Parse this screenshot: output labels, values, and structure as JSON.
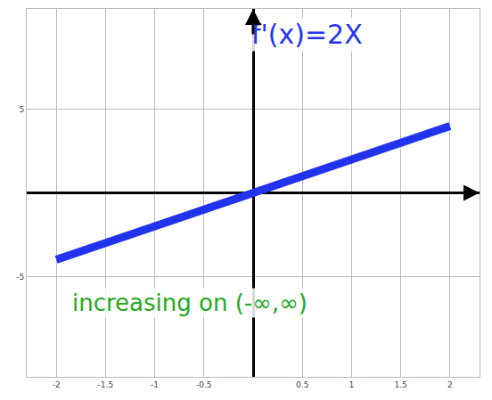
{
  "chart_data": {
    "type": "line",
    "x": [
      -2,
      2
    ],
    "series": [
      {
        "name": "f'(x)=2X",
        "color": "#2233ee",
        "values": [
          -4,
          4
        ]
      }
    ],
    "xlim": [
      -2.3,
      2.3
    ],
    "xticks": [
      -2,
      -1.5,
      -1,
      -0.5,
      0.5,
      1,
      1.5,
      2
    ],
    "ylim": [
      -11,
      11
    ],
    "yticks": [
      -5,
      5
    ],
    "grid": true,
    "annotations": [
      {
        "text": "f'(x)=2X",
        "color": "#2233ee"
      },
      {
        "text": "increasing on (-∞,∞)",
        "color": "#22aa22"
      }
    ]
  }
}
